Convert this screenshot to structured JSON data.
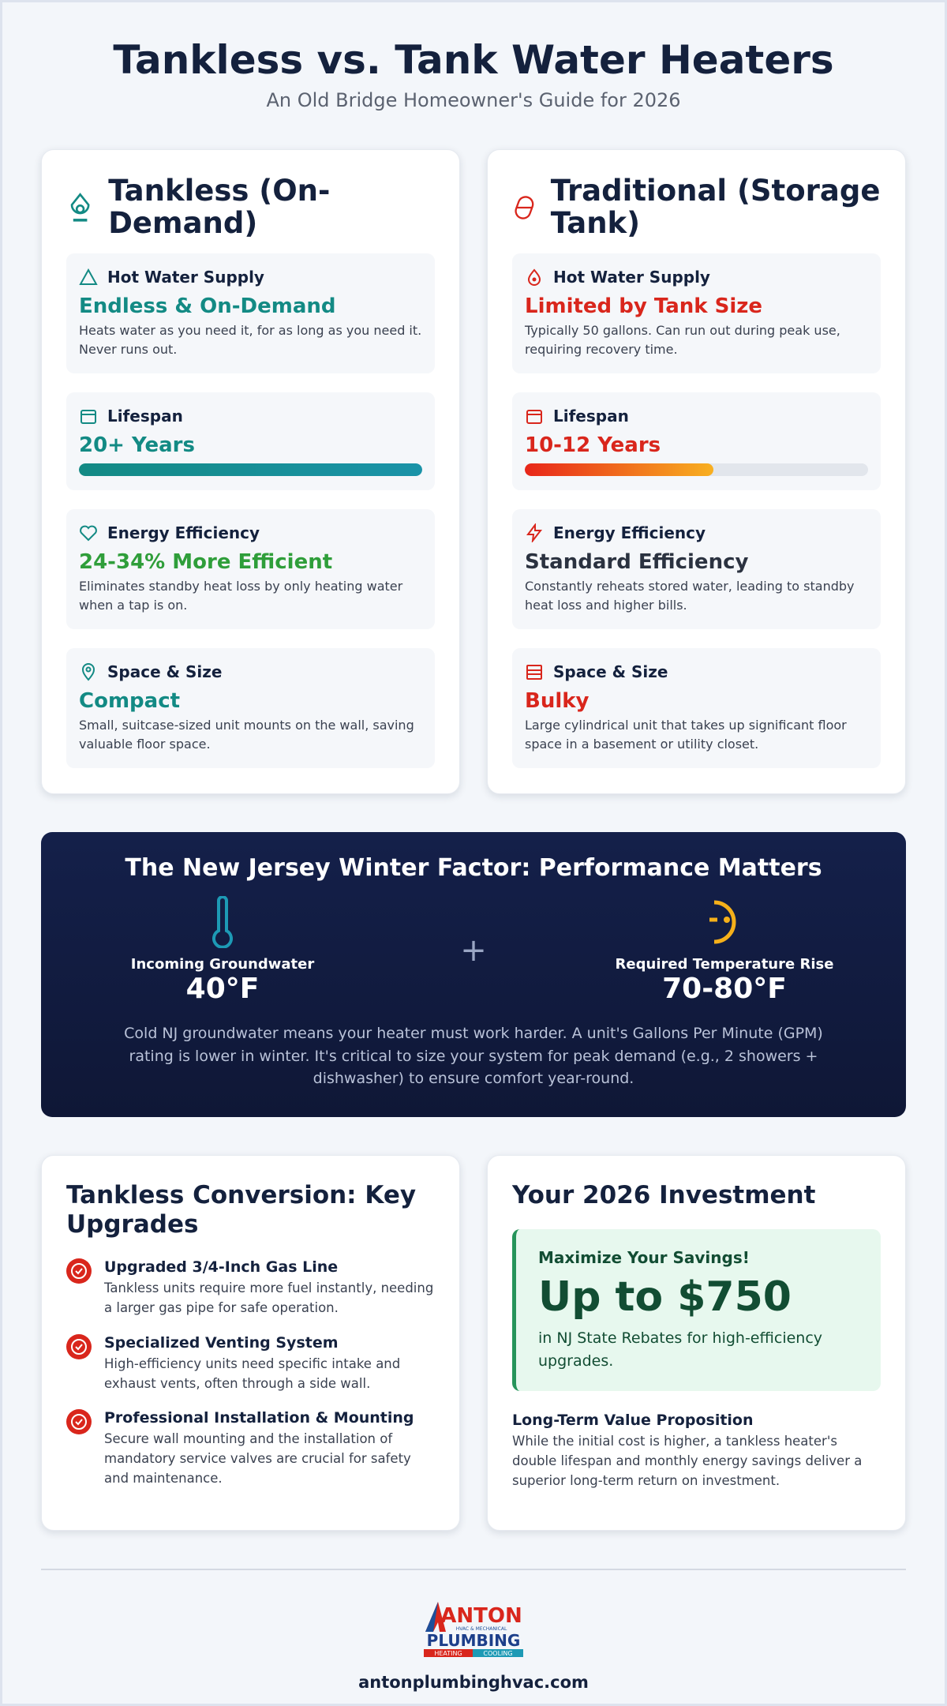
{
  "header": {
    "title": "Tankless vs. Tank Water Heaters",
    "subtitle": "An Old Bridge Homeowner's Guide for 2026"
  },
  "comparison": [
    {
      "title": "Tankless (On-Demand)",
      "items": [
        {
          "label": "Hot Water Supply",
          "value": "Endless & On-Demand",
          "description": "Heats water as you need it, for as long as you need it. Never runs out."
        },
        {
          "label": "Lifespan",
          "value": "20+ Years"
        },
        {
          "label": "Energy Efficiency",
          "value": "24-34% More Efficient",
          "description": "Eliminates standby heat loss by only heating water when a tap is on."
        },
        {
          "label": "Space & Size",
          "value": "Compact",
          "description": "Small, suitcase-sized unit mounts on the wall, saving valuable floor space."
        }
      ]
    },
    {
      "title": "Traditional (Storage Tank)",
      "items": [
        {
          "label": "Hot Water Supply",
          "value": "Limited by Tank Size",
          "description": "Typically 50 gallons. Can run out during peak use, requiring recovery time."
        },
        {
          "label": "Lifespan",
          "value": "10-12 Years"
        },
        {
          "label": "Energy Efficiency",
          "value": "Standard Efficiency",
          "description": "Constantly reheats stored water, leading to standby heat loss and higher bills."
        },
        {
          "label": "Space & Size",
          "value": "Bulky",
          "description": "Large cylindrical unit that takes up significant floor space in a basement or utility closet."
        }
      ]
    }
  ],
  "winter": {
    "title": "The New Jersey Winter Factor: Performance Matters",
    "left": {
      "label": "Incoming Groundwater",
      "value": "40°F"
    },
    "operator": "+",
    "right": {
      "label": "Required Temperature Rise",
      "value": "70-80°F"
    },
    "description": "Cold NJ groundwater means your heater must work harder. A unit's Gallons Per Minute (GPM) rating is lower in winter. It's critical to size your system for peak demand (e.g., 2 showers + dishwasher) to ensure comfort year-round."
  },
  "upgrades": {
    "title": "Tankless Conversion: Key Upgrades",
    "items": [
      {
        "title": "Upgraded 3/4-Inch Gas Line",
        "text": "Tankless units require more fuel instantly, needing a larger gas pipe for safe operation."
      },
      {
        "title": "Specialized Venting System",
        "text": "High-efficiency units need specific intake and exhaust vents, often through a side wall."
      },
      {
        "title": "Professional Installation & Mounting",
        "text": "Secure wall mounting and the installation of mandatory service valves are crucial for safety and maintenance."
      }
    ]
  },
  "investment": {
    "title": "Your 2026 Investment",
    "callout": {
      "kicker": "Maximize Your Savings!",
      "amount": "Up to $750",
      "text": "in NJ State Rebates for high-efficiency upgrades."
    },
    "value_title": "Long-Term Value Proposition",
    "value_text": "While the initial cost is higher, a tankless heater's double lifespan and monthly energy savings deliver a superior long-term return on investment."
  },
  "footer": {
    "logo": {
      "name": "ANTON",
      "tagline": "HVAC & MECHANICAL",
      "main": "PLUMBING",
      "left": "HEATING",
      "right": "COOLING"
    },
    "url": "antonplumbinghvac.com"
  }
}
